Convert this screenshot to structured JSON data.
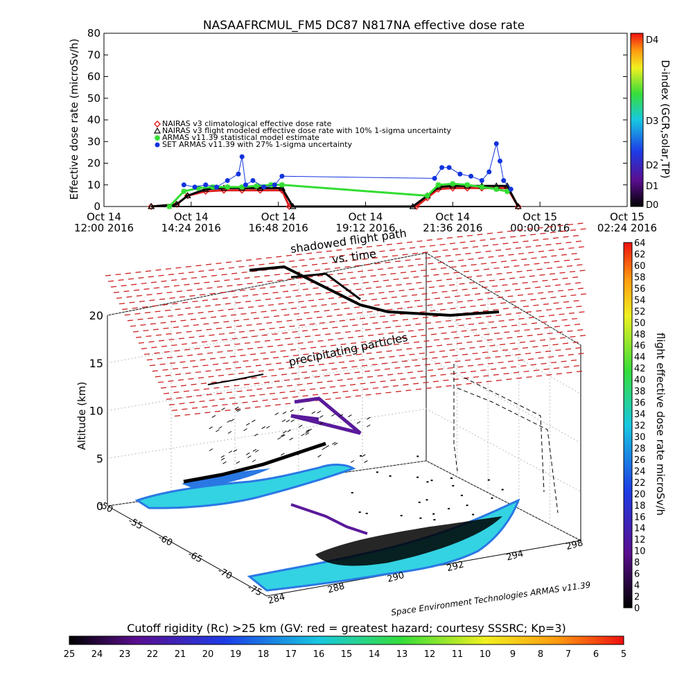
{
  "top_chart": {
    "title": "NASAAFRCMUL_FM5 DC87 N817NA effective dose rate",
    "ylabel": "Effective dose rate (microSv/h)",
    "right_label": "D-index (GCR,solar,TP)",
    "ylim": [
      0,
      80
    ],
    "y_ticks": [
      "0",
      "10",
      "20",
      "30",
      "40",
      "50",
      "60",
      "70",
      "80"
    ],
    "x_ticks": [
      {
        "line1": "Oct 14",
        "line2": "12:00 2016"
      },
      {
        "line1": "Oct 14",
        "line2": "14:24 2016"
      },
      {
        "line1": "Oct 14",
        "line2": "16:48 2016"
      },
      {
        "line1": "Oct 14",
        "line2": "19:12 2016"
      },
      {
        "line1": "Oct 14",
        "line2": "21:36 2016"
      },
      {
        "line1": "Oct 15",
        "line2": "00:00 2016"
      },
      {
        "line1": "Oct 15",
        "line2": "02:24 2016"
      }
    ],
    "d_index_labels": [
      "D0",
      "D1",
      "D2",
      "D3",
      "D4"
    ],
    "legend": [
      {
        "label": "NAIRAS v3 climatological effective dose rate",
        "color": "#dd2222",
        "symbol": "diamond"
      },
      {
        "label": "NAIRAS v3 flight modeled effective dose rate with 10% 1-sigma uncertainty",
        "color": "#000000",
        "symbol": "triangle"
      },
      {
        "label": "ARMAS v11.39 statistical model estimate",
        "color": "#33dd33",
        "symbol": "asterisk"
      },
      {
        "label": "SET ARMAS v11.39 with 27% 1-sigma uncertainty",
        "color": "#1133dd",
        "symbol": "circle"
      }
    ]
  },
  "chart_data": [
    {
      "type": "scatter",
      "title": "NASAAFRCMUL_FM5 DC87 N817NA effective dose rate",
      "xlabel": "",
      "ylabel": "Effective dose rate (microSv/h)",
      "x_unit": "hours since Oct 14 12:00 2016",
      "xlim": [
        0,
        14.4
      ],
      "ylim": [
        0,
        80
      ],
      "series": [
        {
          "name": "NAIRAS v3 climatological effective dose rate",
          "x": [
            1.3,
            2.0,
            2.3,
            2.8,
            3.3,
            3.8,
            4.3,
            4.9,
            5.1,
            8.6,
            8.9,
            9.2,
            9.6,
            10.0,
            10.4,
            10.8,
            11.1,
            11.4
          ],
          "y": [
            0,
            1,
            5,
            7,
            7.5,
            7.5,
            7.5,
            7.5,
            0,
            0,
            4,
            8,
            8.5,
            8.5,
            8.5,
            8.5,
            8.5,
            0
          ]
        },
        {
          "name": "NAIRAS v3 flight modeled effective dose rate with 10% 1-sigma uncertainty",
          "x": [
            1.3,
            2.0,
            2.3,
            2.8,
            3.3,
            3.8,
            4.3,
            4.9,
            5.2,
            8.5,
            8.9,
            9.2,
            9.6,
            10.0,
            10.4,
            10.8,
            11.1,
            11.4
          ],
          "y": [
            0,
            1,
            5,
            8,
            8.5,
            8.5,
            8.5,
            8.5,
            0,
            0,
            5,
            9,
            9.5,
            9.5,
            9.5,
            9.5,
            9.5,
            0
          ]
        },
        {
          "name": "ARMAS v11.39 statistical model estimate",
          "x": [
            1.8,
            2.2,
            2.6,
            3.0,
            3.4,
            3.8,
            4.2,
            4.6,
            4.9,
            8.9,
            9.2,
            9.6,
            10.0,
            10.4,
            10.8,
            11.1
          ],
          "y": [
            0,
            7,
            8.5,
            9,
            9,
            9,
            9.5,
            10,
            10,
            5,
            10,
            10.5,
            10,
            9,
            8,
            7
          ]
        },
        {
          "name": "SET ARMAS v11.39 with 27% 1-sigma uncertainty",
          "x": [
            2.2,
            2.5,
            2.8,
            3.1,
            3.4,
            3.7,
            3.8,
            3.9,
            4.1,
            4.4,
            4.7,
            4.9,
            9.1,
            9.3,
            9.5,
            9.8,
            10.1,
            10.4,
            10.6,
            10.8,
            10.9,
            11.0,
            11.2
          ],
          "y": [
            10,
            9,
            10,
            9,
            12,
            15,
            23,
            10,
            12,
            9,
            10,
            14,
            13,
            18,
            18,
            15,
            14,
            12,
            16,
            29,
            21,
            12,
            8
          ]
        }
      ]
    },
    {
      "type": "scatter",
      "title": "",
      "ylabel": "Altitude (km)",
      "zlim": [
        0,
        20
      ],
      "z_ticks": [
        "0",
        "5",
        "10",
        "15",
        "20"
      ],
      "lat_ticks": [
        "-50",
        "-55",
        "-60",
        "-65",
        "-70",
        "-75"
      ],
      "lon_ticks": [
        "284",
        "288",
        "290",
        "292",
        "294",
        "298"
      ],
      "annotations": [
        "shadowed flight path",
        "vs. time",
        "precipitating particles"
      ],
      "credit": "Space Environment Technologies ARMAS v11.39"
    }
  ],
  "dose_colorbar": {
    "label": "flight effective dose rate microSv/h",
    "ticks": [
      "0",
      "2",
      "4",
      "6",
      "8",
      "10",
      "12",
      "14",
      "16",
      "18",
      "20",
      "22",
      "24",
      "26",
      "28",
      "30",
      "32",
      "34",
      "36",
      "38",
      "40",
      "42",
      "44",
      "46",
      "48",
      "50",
      "52",
      "54",
      "56",
      "58",
      "60",
      "62",
      "64"
    ]
  },
  "rigidity_colorbar": {
    "title": "Cutoff rigidity (Rc) >25 km (GV: red = greatest hazard; courtesy SSSRC; Kp=3)",
    "ticks": [
      "25",
      "24",
      "23",
      "22",
      "21",
      "20",
      "19",
      "18",
      "17",
      "16",
      "15",
      "14",
      "13",
      "12",
      "11",
      "10",
      "9",
      "8",
      "7",
      "6",
      "5"
    ]
  },
  "colors": {
    "nairas_clim": "#dd2222",
    "nairas_flight": "#000000",
    "armas_model": "#33dd33",
    "set_armas": "#1133dd",
    "precip_dash": "#cc2222",
    "rigidity_fill": "#33d3e3",
    "rigidity_edge": "#2a78e4"
  }
}
